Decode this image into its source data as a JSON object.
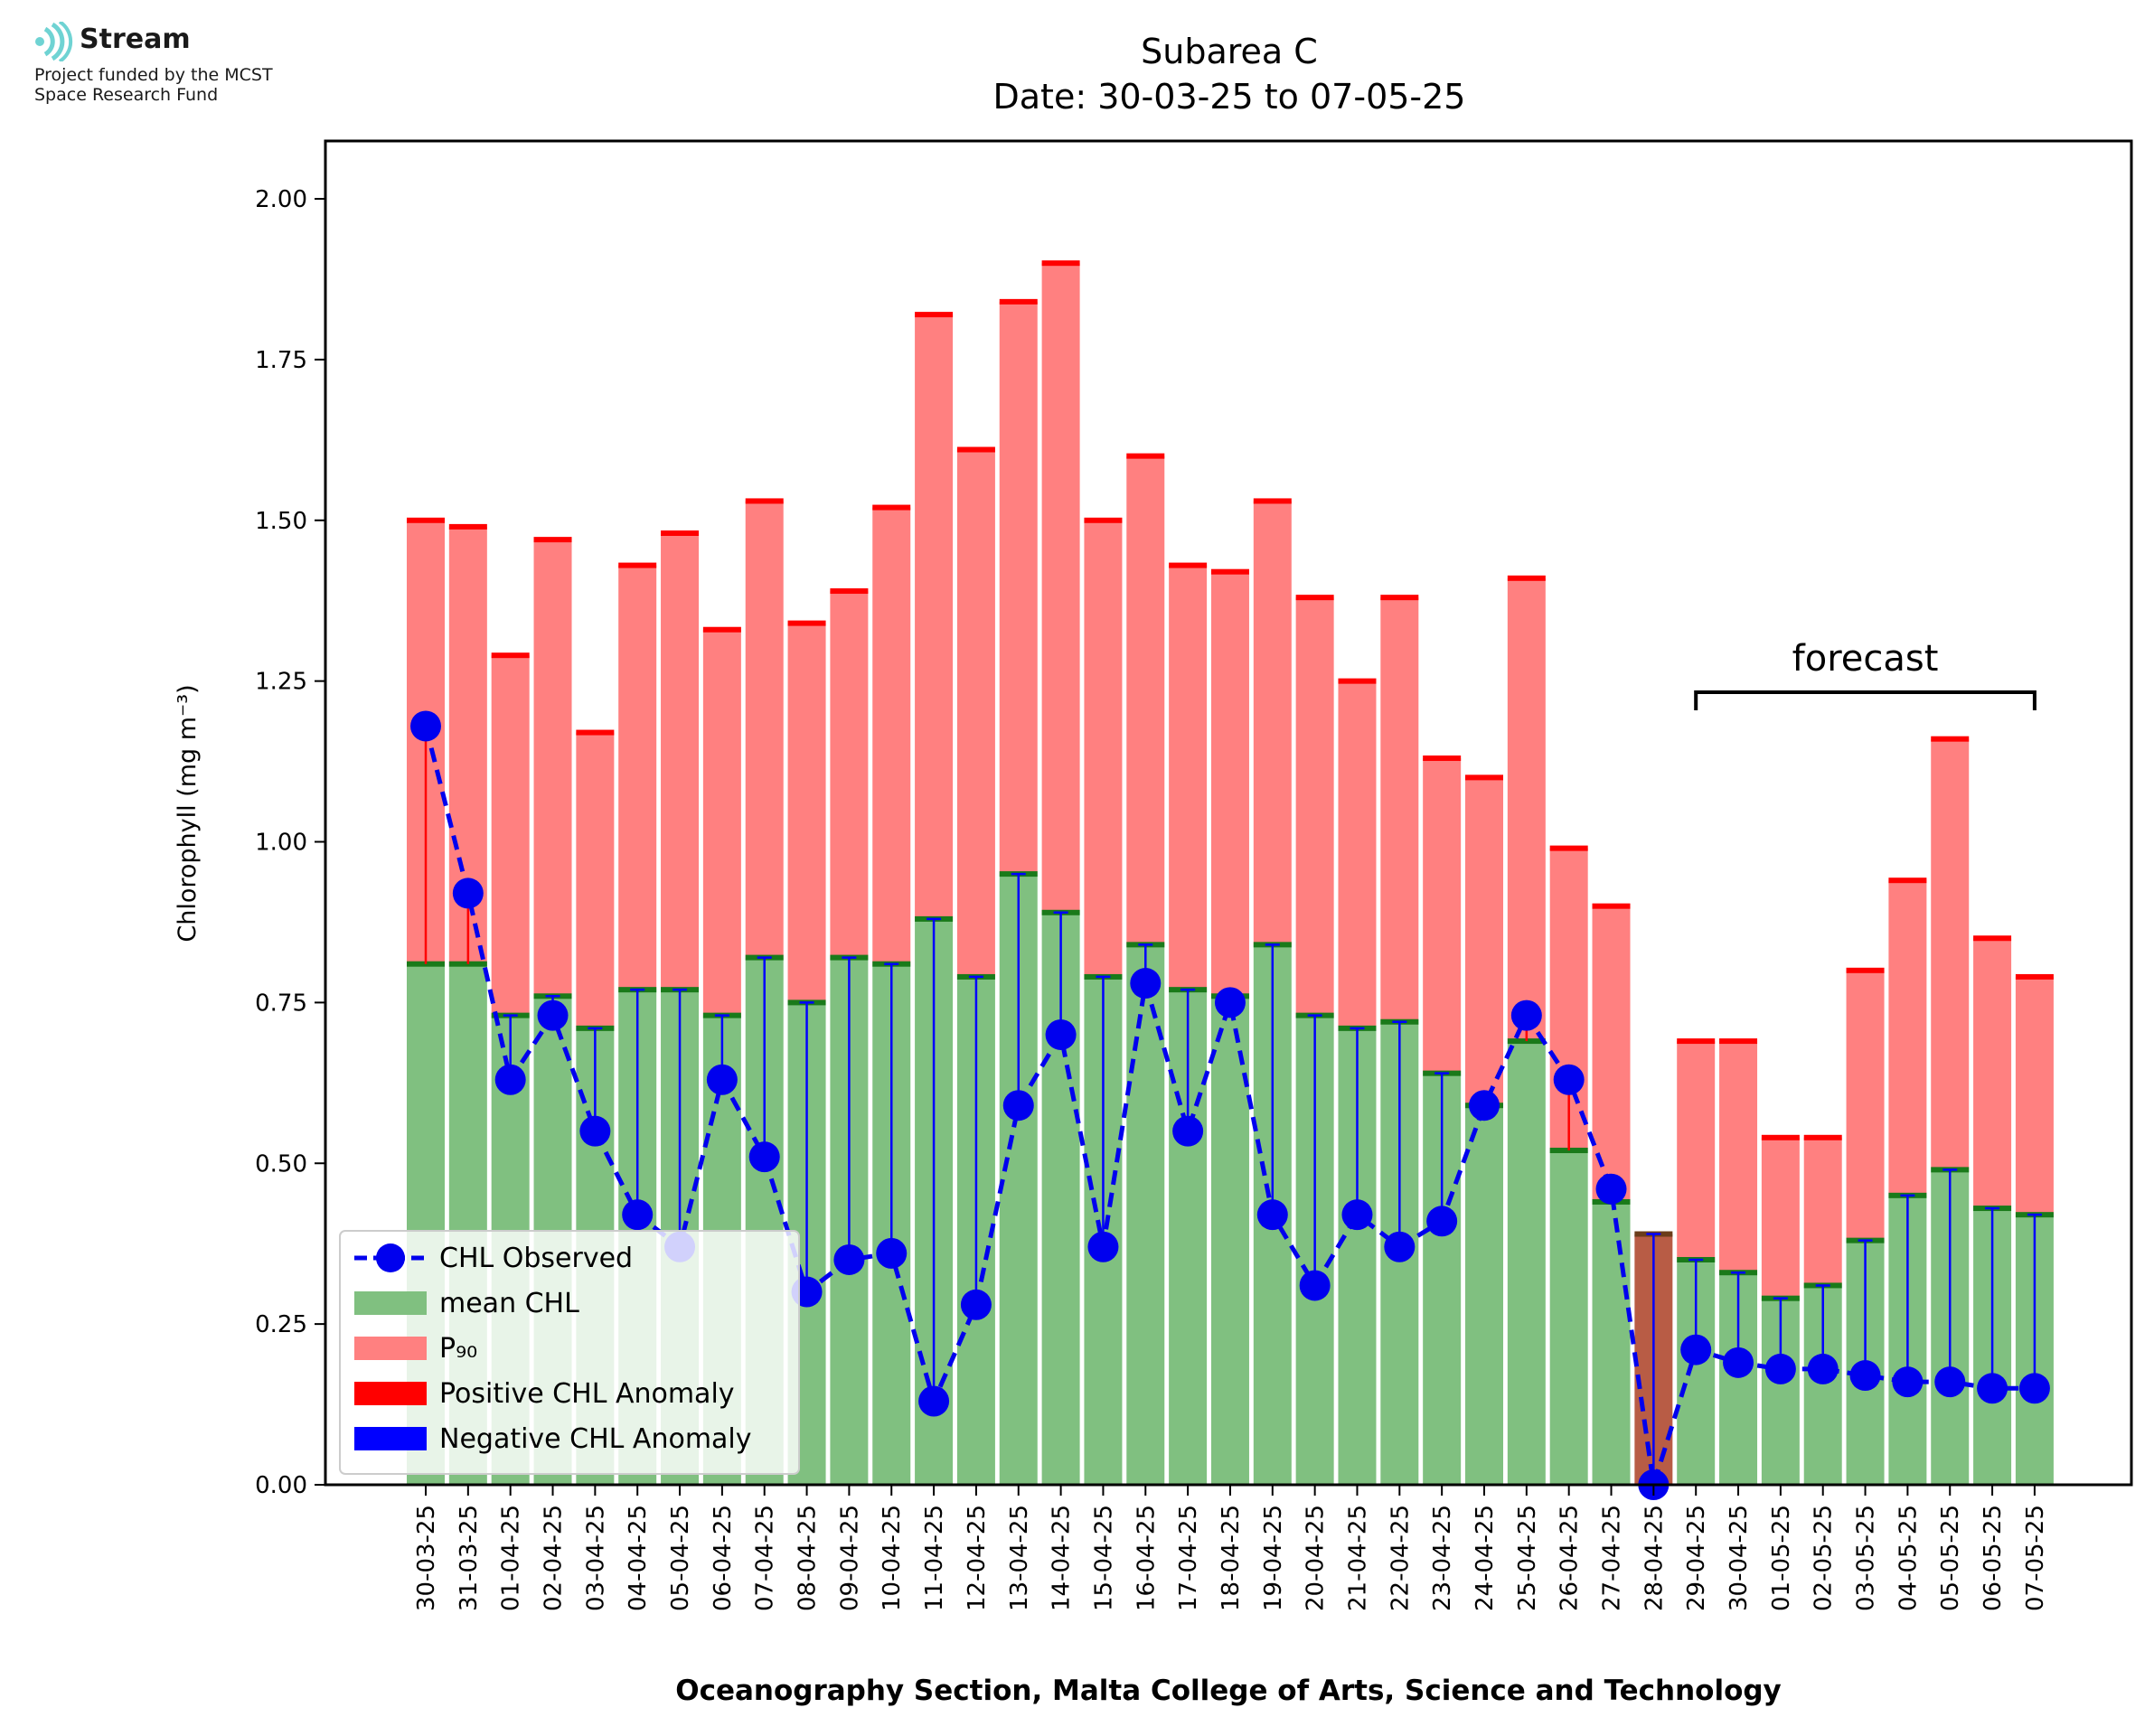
{
  "logo": {
    "name": "Stream",
    "line1": "Project funded by the MCST",
    "line2": "Space Research Fund"
  },
  "chart_data": {
    "type": "bar",
    "title": "Subarea C",
    "subtitle": "Date: 30-03-25 to 07-05-25",
    "xlabel": "Oceanography Section, Malta College of Arts, Science and Technology",
    "ylabel": "Chlorophyll (mg m⁻³)",
    "ylim": [
      0,
      2.09
    ],
    "yticks": [
      "0.00",
      "0.25",
      "0.50",
      "0.75",
      "1.00",
      "1.25",
      "1.50",
      "1.75",
      "2.00"
    ],
    "categories": [
      "30-03-25",
      "31-03-25",
      "01-04-25",
      "02-04-25",
      "03-04-25",
      "04-04-25",
      "05-04-25",
      "06-04-25",
      "07-04-25",
      "08-04-25",
      "09-04-25",
      "10-04-25",
      "11-04-25",
      "12-04-25",
      "13-04-25",
      "14-04-25",
      "15-04-25",
      "16-04-25",
      "17-04-25",
      "18-04-25",
      "19-04-25",
      "20-04-25",
      "21-04-25",
      "22-04-25",
      "23-04-25",
      "24-04-25",
      "25-04-25",
      "26-04-25",
      "27-04-25",
      "28-04-25",
      "29-04-25",
      "30-04-25",
      "01-05-25",
      "02-05-25",
      "03-05-25",
      "04-05-25",
      "05-05-25",
      "06-05-25",
      "07-05-25"
    ],
    "series": [
      {
        "name": "mean CHL",
        "color": "#80c080",
        "values": [
          0.81,
          0.81,
          0.73,
          0.76,
          0.71,
          0.77,
          0.77,
          0.73,
          0.82,
          0.75,
          0.82,
          0.81,
          0.88,
          0.79,
          0.95,
          0.89,
          0.79,
          0.84,
          0.77,
          0.76,
          0.84,
          0.73,
          0.71,
          0.72,
          0.64,
          0.59,
          0.69,
          0.52,
          0.44,
          0.39,
          0.35,
          0.33,
          0.29,
          0.31,
          0.38,
          0.45,
          0.49,
          0.43,
          0.42
        ]
      },
      {
        "name": "P₉₀",
        "color": "#ff8080",
        "values": [
          1.5,
          1.49,
          1.29,
          1.47,
          1.17,
          1.43,
          1.48,
          1.33,
          1.53,
          1.34,
          1.39,
          1.52,
          1.82,
          1.61,
          1.84,
          1.9,
          1.5,
          1.6,
          1.43,
          1.42,
          1.53,
          1.38,
          1.25,
          1.38,
          1.13,
          1.1,
          1.41,
          0.99,
          0.9,
          0.39,
          0.69,
          0.69,
          0.54,
          0.54,
          0.8,
          0.94,
          1.16,
          0.85,
          0.79
        ]
      },
      {
        "name": "CHL Observed",
        "color": "#0000ee",
        "values": [
          1.18,
          0.92,
          0.63,
          0.73,
          0.55,
          0.42,
          0.37,
          0.63,
          0.51,
          0.3,
          0.35,
          0.36,
          0.13,
          0.28,
          0.59,
          0.7,
          0.37,
          0.78,
          0.55,
          0.75,
          0.42,
          0.31,
          0.42,
          0.37,
          0.41,
          0.59,
          0.73,
          0.63,
          0.46,
          0.0,
          0.21,
          0.19,
          0.18,
          0.18,
          0.17,
          0.16,
          0.16,
          0.15,
          0.15
        ]
      }
    ],
    "legend": {
      "placement": "lower-left",
      "entries": [
        "CHL Observed",
        "mean CHL",
        "P₉₀",
        "Positive CHL Anomaly",
        "Negative CHL Anomaly"
      ],
      "colors": [
        "#0000ee",
        "#80c080",
        "#ff8080",
        "#ff0000",
        "#0000ff"
      ]
    },
    "annotation": {
      "label": "forecast",
      "from": "29-04-25",
      "to": "07-05-25"
    },
    "highlight_category": "28-04-25",
    "highlight_color": "#b85c45"
  }
}
